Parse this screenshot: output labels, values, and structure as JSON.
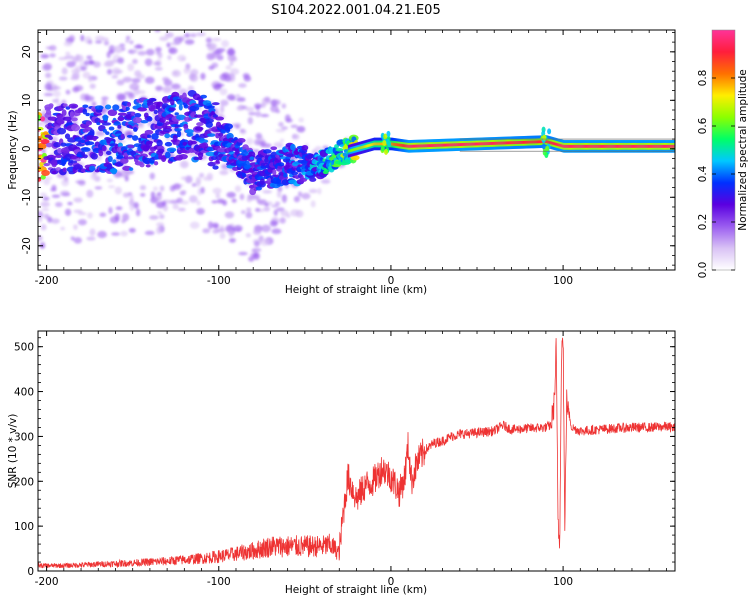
{
  "title": "S104.2022.001.04.21.E05",
  "chart_data": [
    {
      "type": "heatmap",
      "xlabel": "Height of straight line (km)",
      "ylabel": "Frequency (Hz)",
      "xlim": [
        -205,
        165
      ],
      "ylim": [
        -25,
        24.5
      ],
      "xticks": [
        -200,
        -100,
        0,
        100
      ],
      "yticks": [
        -20,
        -10,
        0,
        10,
        20
      ],
      "colorbar": {
        "label": "Normalized spectral amplitude",
        "range": [
          0,
          1
        ],
        "ticks": [
          0.0,
          0.2,
          0.4,
          0.6,
          0.8
        ],
        "colors": [
          "#ffffff",
          "#d9c2f5",
          "#9a5cf0",
          "#5a00e0",
          "#0030ff",
          "#00c8ff",
          "#00ff66",
          "#8cff00",
          "#ffee00",
          "#ff7000",
          "#ff1e3c",
          "#ff3399"
        ]
      },
      "ridge": [
        {
          "x": -200,
          "y": 2,
          "amp": 0.3
        },
        {
          "x": -160,
          "y": 2,
          "amp": 0.35
        },
        {
          "x": -120,
          "y": 5,
          "amp": 0.35
        },
        {
          "x": -100,
          "y": 3,
          "amp": 0.35
        },
        {
          "x": -80,
          "y": -5,
          "amp": 0.35
        },
        {
          "x": -60,
          "y": -3,
          "amp": 0.35
        },
        {
          "x": -45,
          "y": -4,
          "amp": 0.4
        },
        {
          "x": -30,
          "y": -1,
          "amp": 0.55
        },
        {
          "x": -10,
          "y": 1,
          "amp": 0.75
        },
        {
          "x": 0,
          "y": 1,
          "amp": 0.8
        },
        {
          "x": 10,
          "y": 0.5,
          "amp": 0.95
        },
        {
          "x": 50,
          "y": 1,
          "amp": 0.95
        },
        {
          "x": 90,
          "y": 1.5,
          "amp": 0.9
        },
        {
          "x": 100,
          "y": 0.5,
          "amp": 0.95
        },
        {
          "x": 160,
          "y": 0.5,
          "amp": 0.95
        }
      ]
    },
    {
      "type": "line",
      "xlabel": "Height of straight line (km)",
      "ylabel": "SNR (10 * v/v)",
      "xlim": [
        -205,
        165
      ],
      "ylim": [
        0,
        535
      ],
      "xticks": [
        -200,
        -100,
        0,
        100
      ],
      "yticks": [
        0,
        100,
        200,
        300,
        400,
        500
      ],
      "color": "#ee3333",
      "series": [
        {
          "x": [
            -205,
            -190,
            -170,
            -150,
            -130,
            -110,
            -95,
            -80,
            -70,
            -60,
            -50,
            -40,
            -35,
            -30,
            -28,
            -25,
            -20,
            -15,
            -10,
            -5,
            0,
            5,
            8,
            10,
            12,
            15,
            20,
            25,
            30,
            35,
            40,
            50,
            60,
            65,
            70,
            80,
            90,
            93,
            95,
            96,
            97,
            98,
            99,
            100,
            101,
            102,
            105,
            110,
            120,
            130,
            140,
            150,
            160,
            165
          ],
          "y": [
            12,
            12,
            15,
            18,
            22,
            28,
            35,
            45,
            55,
            55,
            55,
            55,
            58,
            40,
            120,
            210,
            160,
            190,
            200,
            230,
            210,
            175,
            210,
            280,
            200,
            240,
            270,
            285,
            290,
            300,
            305,
            308,
            312,
            325,
            315,
            318,
            320,
            325,
            380,
            500,
            120,
            50,
            480,
            530,
            80,
            380,
            320,
            312,
            315,
            318,
            320,
            320,
            322,
            318
          ]
        }
      ]
    }
  ]
}
